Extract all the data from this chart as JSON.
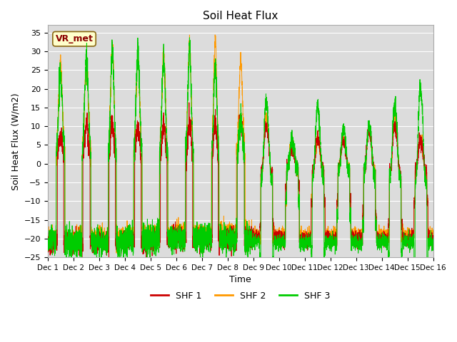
{
  "title": "Soil Heat Flux",
  "xlabel": "Time",
  "ylabel": "Soil Heat Flux (W/m2)",
  "xlim": [
    0,
    15
  ],
  "ylim": [
    -25,
    37
  ],
  "yticks": [
    -25,
    -20,
    -15,
    -10,
    -5,
    0,
    5,
    10,
    15,
    20,
    25,
    30,
    35
  ],
  "xtick_labels": [
    "Dec 1",
    "Dec 2",
    "Dec 3",
    "Dec 4",
    "Dec 5",
    "Dec 6",
    "Dec 7",
    "Dec 8",
    "Dec 9",
    "Dec 10",
    "Dec 11",
    "Dec 12",
    "Dec 13",
    "Dec 14",
    "Dec 15",
    "Dec 16"
  ],
  "colors": {
    "SHF1": "#cc0000",
    "SHF2": "#ff9900",
    "SHF3": "#00cc00"
  },
  "legend_labels": [
    "SHF 1",
    "SHF 2",
    "SHF 3"
  ],
  "annotation_text": "VR_met",
  "bg_color": "#dcdcdc",
  "line_width": 0.7
}
